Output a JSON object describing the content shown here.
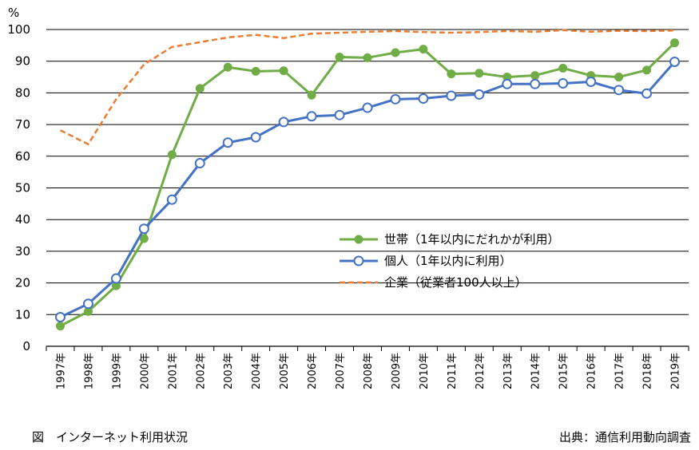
{
  "chart_data": {
    "type": "line",
    "ylabel": "%",
    "ylim": [
      0,
      100
    ],
    "yticks": [
      0,
      10,
      20,
      30,
      40,
      50,
      60,
      70,
      80,
      90,
      100
    ],
    "categories": [
      "1997年",
      "1998年",
      "1999年",
      "2000年",
      "2001年",
      "2002年",
      "2003年",
      "2004年",
      "2005年",
      "2006年",
      "2007年",
      "2008年",
      "2009年",
      "2010年",
      "2011年",
      "2012年",
      "2013年",
      "2014年",
      "2015年",
      "2016年",
      "2017年",
      "2018年",
      "2019年"
    ],
    "grid": true,
    "legend_position": "bottom-right",
    "series": [
      {
        "name": "世帯（1年以内にだれかが利用）",
        "color": "#70AD47",
        "marker": "filled-circle",
        "style": "solid",
        "values": [
          6.4,
          11.0,
          19.1,
          34.0,
          60.5,
          81.4,
          88.1,
          86.8,
          87.0,
          79.3,
          91.3,
          91.1,
          92.7,
          93.8,
          86.0,
          86.2,
          85.0,
          85.5,
          87.8,
          85.5,
          85.0,
          87.2,
          95.8
        ]
      },
      {
        "name": "個人（1年以内に利用）",
        "color": "#4472C4",
        "marker": "hollow-circle",
        "style": "solid",
        "values": [
          9.2,
          13.4,
          21.4,
          37.1,
          46.3,
          57.8,
          64.3,
          66.0,
          70.8,
          72.6,
          73.0,
          75.3,
          78.0,
          78.2,
          79.1,
          79.5,
          82.8,
          82.8,
          83.0,
          83.5,
          80.9,
          79.8,
          89.8
        ]
      },
      {
        "name": "企業（従業者100人以上）",
        "color": "#ED7D31",
        "marker": "none",
        "style": "dashed",
        "values": [
          68.2,
          63.8,
          78.0,
          89.0,
          94.5,
          96.0,
          97.5,
          98.3,
          97.3,
          98.7,
          99.0,
          99.3,
          99.5,
          99.2,
          99.0,
          99.2,
          99.5,
          99.3,
          99.8,
          99.3,
          99.6,
          99.5,
          99.7
        ]
      }
    ]
  },
  "caption": {
    "left": "図　インターネット利用状況",
    "right": "出典：通信利用動向調査"
  }
}
